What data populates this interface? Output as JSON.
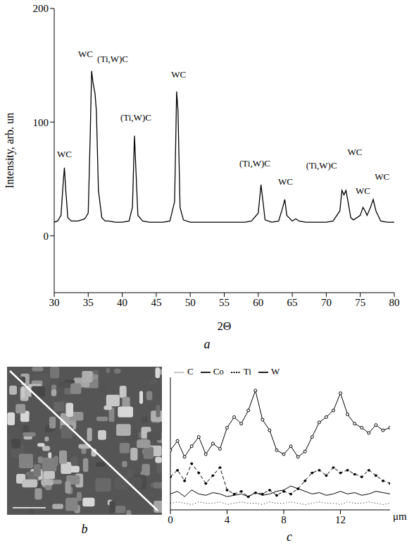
{
  "chart_data": [
    {
      "panel": "a",
      "type": "line",
      "x_label": "2Θ",
      "y_label": "Intensity, arb. un",
      "xlim": [
        30,
        80
      ],
      "xticks": [
        30,
        35,
        40,
        45,
        50,
        55,
        60,
        65,
        70,
        75,
        80
      ],
      "ylim": [
        -50,
        200
      ],
      "yticks": [
        0,
        100,
        200
      ],
      "grid": false,
      "color": "#000000",
      "x": [
        30,
        30.5,
        31,
        31.3,
        31.5,
        31.7,
        32,
        32.5,
        33,
        33.5,
        34,
        34.5,
        35,
        35.3,
        35.5,
        35.7,
        36,
        36.2,
        36.5,
        37,
        37.5,
        38,
        39,
        40,
        41,
        41.5,
        41.8,
        42,
        42.3,
        43,
        44,
        45,
        46,
        47,
        47.7,
        48,
        48.2,
        48.5,
        49,
        50,
        51,
        52,
        53,
        54,
        55,
        56,
        57,
        58,
        59,
        60,
        60.4,
        60.7,
        61,
        62,
        63,
        63.6,
        63.9,
        64.2,
        65,
        65.5,
        66,
        67,
        68,
        69,
        70,
        71,
        72,
        72.3,
        72.6,
        72.9,
        73.2,
        73.6,
        74,
        75,
        75.4,
        75.7,
        76,
        76.5,
        76.9,
        77.3,
        78,
        79,
        80
      ],
      "values": [
        12,
        13,
        18,
        45,
        60,
        40,
        16,
        13,
        13,
        13,
        14,
        15,
        20,
        90,
        145,
        135,
        125,
        110,
        40,
        16,
        13,
        13,
        12,
        12,
        13,
        25,
        88,
        60,
        18,
        13,
        12,
        12,
        12,
        13,
        30,
        127,
        110,
        25,
        14,
        12,
        12,
        12,
        12,
        12,
        12,
        12,
        12,
        12,
        13,
        20,
        45,
        30,
        14,
        12,
        13,
        25,
        32,
        18,
        13,
        15,
        13,
        12,
        12,
        12,
        12,
        13,
        22,
        40,
        36,
        40,
        30,
        16,
        14,
        18,
        25,
        22,
        18,
        25,
        32,
        22,
        13,
        12,
        12
      ],
      "annotations": [
        {
          "text": "WC",
          "x": 31.5,
          "y": 72
        },
        {
          "text": "WC",
          "x": 34.6,
          "y": 160
        },
        {
          "text": "(Ti,W)C",
          "x": 38.6,
          "y": 156
        },
        {
          "text": "(Ti,W)C",
          "x": 42,
          "y": 104
        },
        {
          "text": "WC",
          "x": 48.3,
          "y": 142
        },
        {
          "text": "(Ti,W)C",
          "x": 59.5,
          "y": 64
        },
        {
          "text": "WC",
          "x": 64,
          "y": 48
        },
        {
          "text": "(Ti,W)C",
          "x": 69.3,
          "y": 62
        },
        {
          "text": "WC",
          "x": 74.2,
          "y": 74
        },
        {
          "text": "WC",
          "x": 75.4,
          "y": 40
        },
        {
          "text": "WC",
          "x": 78.2,
          "y": 52
        }
      ]
    },
    {
      "panel": "c",
      "type": "line",
      "x_label": "μm",
      "xlim": [
        0,
        15.5
      ],
      "xticks": [
        0,
        4,
        8,
        12
      ],
      "ylim": [
        0,
        100
      ],
      "tick_labels": "x",
      "grid": false,
      "legend": "top",
      "x": [
        0,
        0.5,
        1,
        1.5,
        2,
        2.5,
        3,
        3.5,
        4,
        4.5,
        5,
        5.5,
        6,
        6.5,
        7,
        7.5,
        8,
        8.5,
        9,
        9.5,
        10,
        10.5,
        11,
        11.5,
        12,
        12.5,
        13,
        13.5,
        14,
        14.5,
        15,
        15.5
      ],
      "series": [
        {
          "name": "W",
          "color": "#000000",
          "marker": "circle",
          "line_style": "solid",
          "values": [
            45,
            52,
            40,
            48,
            55,
            42,
            50,
            46,
            62,
            70,
            65,
            75,
            90,
            68,
            60,
            45,
            42,
            48,
            40,
            44,
            55,
            66,
            70,
            75,
            88,
            72,
            65,
            62,
            58,
            64,
            60,
            62
          ]
        },
        {
          "name": "Ti",
          "color": "#000000",
          "marker": "dot",
          "line_style": "dashed",
          "values": [
            25,
            30,
            22,
            35,
            28,
            20,
            26,
            32,
            15,
            12,
            14,
            10,
            13,
            12,
            15,
            11,
            14,
            12,
            16,
            22,
            28,
            30,
            26,
            32,
            28,
            30,
            27,
            25,
            30,
            26,
            22,
            20
          ]
        },
        {
          "name": "Co",
          "color": "#000000",
          "marker": "none",
          "line_style": "solid",
          "values": [
            12,
            14,
            10,
            15,
            12,
            11,
            13,
            12,
            10,
            11,
            12,
            10,
            13,
            11,
            12,
            14,
            15,
            18,
            16,
            14,
            12,
            13,
            11,
            12,
            14,
            12,
            13,
            11,
            12,
            14,
            13,
            12
          ]
        },
        {
          "name": "C",
          "color": "#000000",
          "marker": "none",
          "line_style": "dotted",
          "values": [
            5,
            6,
            5,
            4,
            6,
            5,
            5,
            6,
            4,
            5,
            6,
            5,
            5,
            4,
            6,
            5,
            5,
            6,
            5,
            4,
            5,
            6,
            5,
            5,
            4,
            6,
            5,
            5,
            6,
            5,
            4,
            5
          ]
        }
      ]
    }
  ],
  "image": {
    "panel": "b"
  }
}
